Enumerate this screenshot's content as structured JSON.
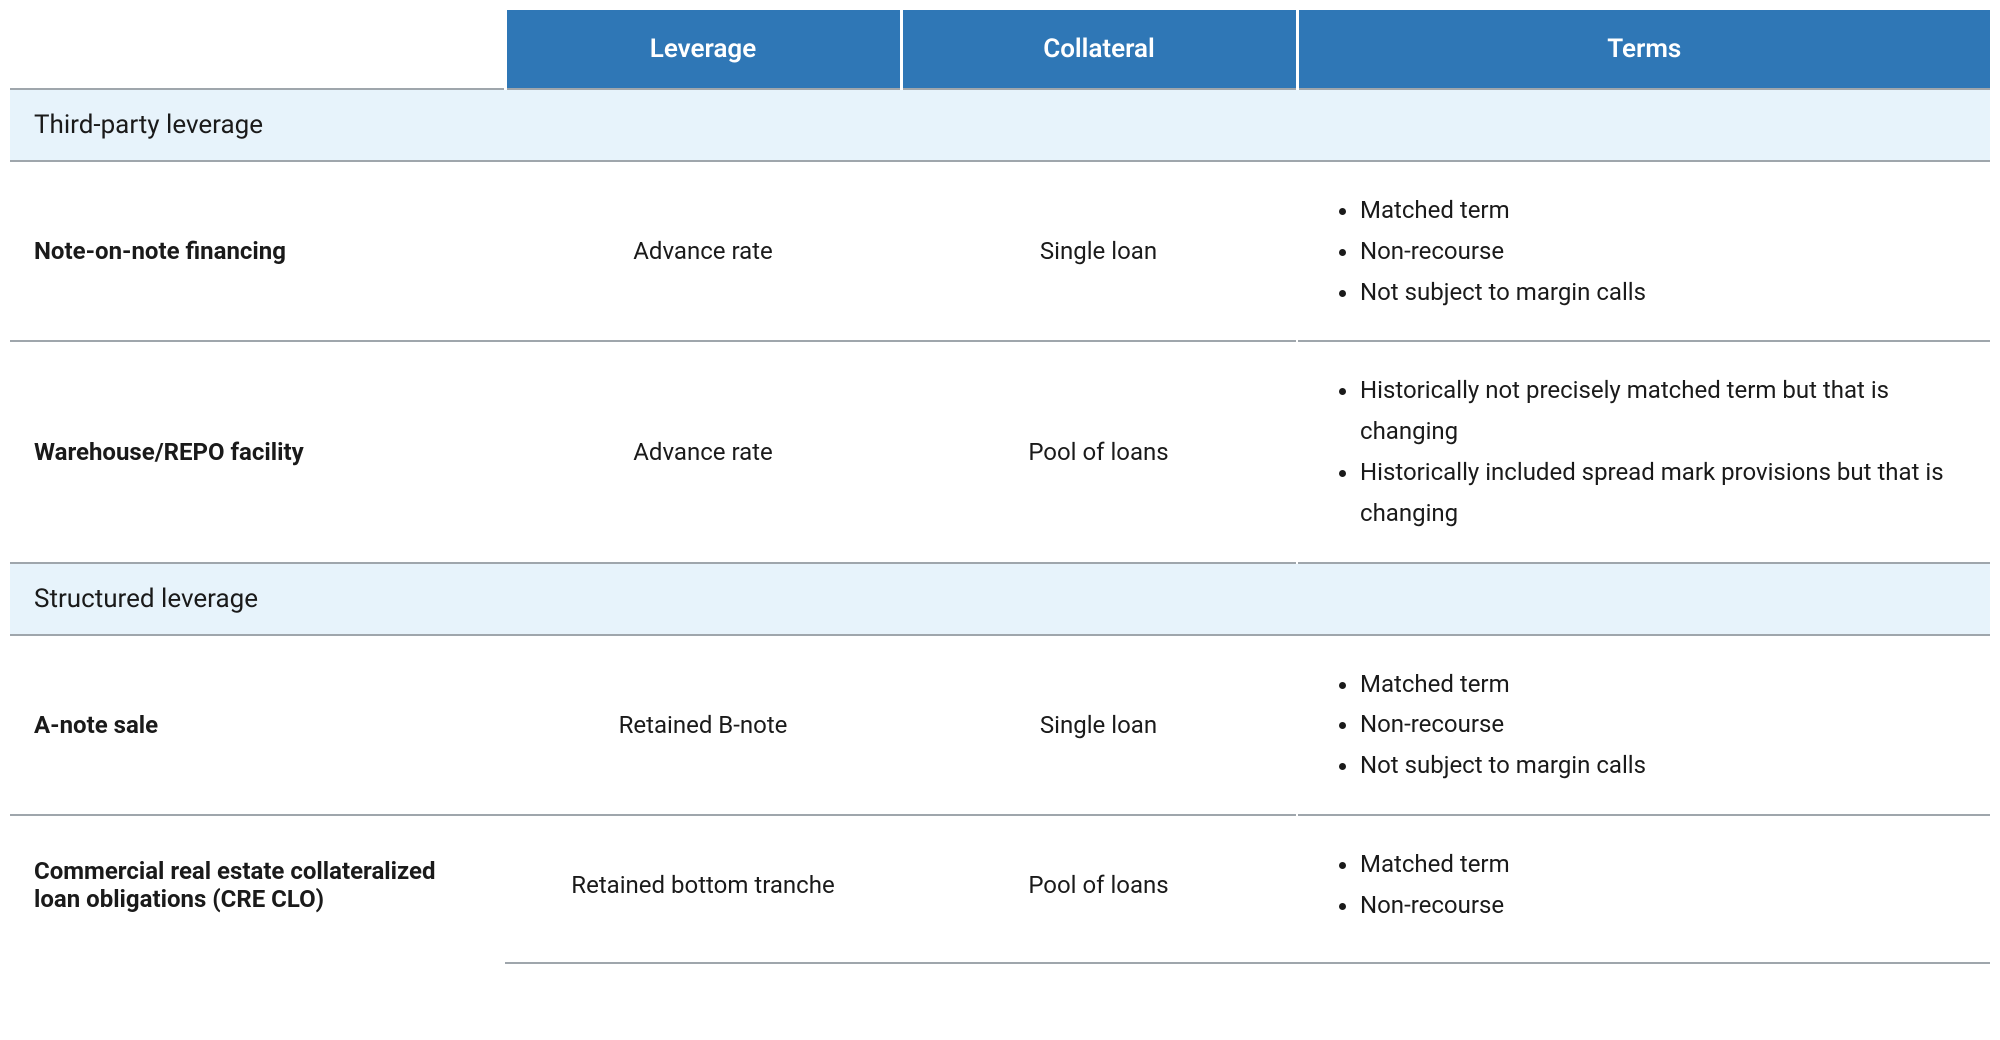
{
  "table": {
    "columns": {
      "name_width_pct": 25,
      "leverage_width_pct": 20,
      "collateral_width_pct": 20,
      "terms_width_pct": 35
    },
    "headers": {
      "leverage": "Leverage",
      "collateral": "Collateral",
      "terms": "Terms"
    },
    "sections": [
      {
        "title": "Third-party leverage",
        "rows": [
          {
            "name": "Note-on-note financing",
            "leverage": "Advance rate",
            "collateral": "Single loan",
            "terms": [
              "Matched term",
              "Non-recourse",
              "Not subject to margin calls"
            ]
          },
          {
            "name": "Warehouse/REPO facility",
            "leverage": "Advance rate",
            "collateral": "Pool of loans",
            "terms": [
              "Historically not precisely matched term but that is changing",
              "Historically included spread mark provisions but that is changing"
            ]
          }
        ]
      },
      {
        "title": "Structured leverage",
        "rows": [
          {
            "name": "A-note sale",
            "leverage": "Retained B-note",
            "collateral": "Single loan",
            "terms": [
              "Matched term",
              "Non-recourse",
              "Not subject to margin calls"
            ]
          },
          {
            "name": "Commercial real estate collateralized loan obligations (CRE CLO)",
            "leverage": "Retained bottom tranche",
            "collateral": "Pool of loans",
            "terms": [
              "Matched term",
              "Non-recourse"
            ]
          }
        ]
      }
    ],
    "styling": {
      "header_bg": "#2f77b6",
      "header_text_color": "#ffffff",
      "header_fontsize": 26,
      "section_bg": "#e7f3fb",
      "section_fontsize": 26,
      "body_fontsize": 24,
      "text_color": "#1a1a1a",
      "border_color": "#9fa6ac",
      "cell_separator_color": "#ffffff"
    }
  }
}
